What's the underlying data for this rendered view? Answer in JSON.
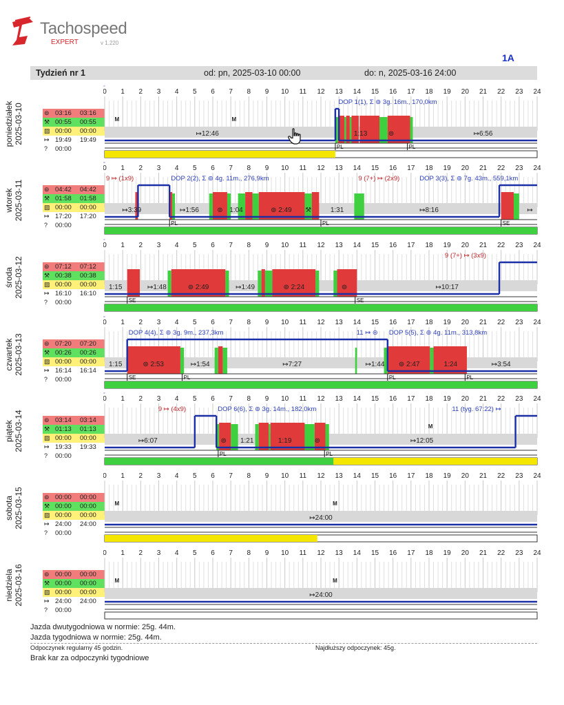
{
  "app": {
    "name": "Tachospeed",
    "edition": "EXPERT",
    "version": "v 1.220"
  },
  "driver_label": "1A",
  "week": {
    "title": "Tydzień nr 1",
    "from": "od: pn, 2025-03-10 00:00",
    "to": "do: n, 2025-03-16 24:00"
  },
  "hour_ticks": [
    "0",
    "1",
    "2",
    "3",
    "4",
    "5",
    "6",
    "7",
    "8",
    "9",
    "10",
    "11",
    "12",
    "13",
    "14",
    "15",
    "16",
    "17",
    "18",
    "19",
    "20",
    "21",
    "22",
    "23",
    "24"
  ],
  "colors": {
    "drive": "#e03a3a",
    "work": "#3fd03f",
    "avail": "#f5e600",
    "rest": "#d8d8d8",
    "line": "#1a2fa6",
    "label_blue": "#2c3fb8",
    "label_red": "#c0272d"
  },
  "days": [
    {
      "name": "poniedziałek",
      "date": "2025-03-10",
      "stats": {
        "drive": [
          "03:16",
          "03:16"
        ],
        "work": [
          "00:55",
          "00:55"
        ],
        "avail": [
          "00:00",
          "00:00"
        ],
        "rest": [
          "19:49",
          "19:49"
        ],
        "unknown": "00:00"
      },
      "drive": [
        [
          12.95,
          13.3
        ],
        [
          13.4,
          13.6
        ],
        [
          13.7,
          14.1
        ],
        [
          14.15,
          15.25
        ],
        [
          15.7,
          16.95
        ]
      ],
      "work": [
        [
          12.8,
          12.95
        ],
        [
          13.3,
          13.4
        ],
        [
          13.6,
          13.7
        ],
        [
          15.25,
          15.7
        ],
        [
          16.95,
          17.1
        ]
      ],
      "line_level": [
        [
          0,
          12.8,
          "low"
        ],
        [
          12.8,
          13.0,
          "high"
        ],
        [
          13.0,
          24,
          "low"
        ]
      ],
      "bottom_bar": {
        "color": "yellow",
        "start": 0,
        "end": 12.8
      },
      "flags": [
        {
          "h": 12.8,
          "t": "PL"
        },
        {
          "h": 16.8,
          "t": "PL"
        }
      ],
      "labels": [
        {
          "h": 5.7,
          "t": "↦12:46",
          "c": "dark"
        },
        {
          "h": 14.2,
          "t": "1:13",
          "c": "dark"
        },
        {
          "h": 21.0,
          "t": "↦6:56",
          "c": "dark"
        },
        {
          "h": 15.9,
          "t": "⊚",
          "c": "dark"
        }
      ],
      "top_labels": [
        {
          "h": 12.9,
          "t": "DOP 1(1), Σ ⊚ 3g. 16m., 170,0km",
          "c": "blue",
          "box": true
        }
      ],
      "markers": [
        {
          "h": 0.4,
          "t": "M"
        },
        {
          "h": 6.9,
          "t": "M"
        }
      ]
    },
    {
      "name": "wtorek",
      "date": "2025-03-11",
      "stats": {
        "drive": [
          "04:42",
          "04:42"
        ],
        "work": [
          "01:58",
          "01:58"
        ],
        "avail": [
          "00:00",
          "00:00"
        ],
        "rest": [
          "17:20",
          "17:20"
        ],
        "unknown": "00:00"
      },
      "drive": [
        [
          1.7,
          1.85
        ],
        [
          3.6,
          3.75
        ],
        [
          6.0,
          6.8
        ],
        [
          7.8,
          8.2
        ],
        [
          8.55,
          11.1
        ],
        [
          11.5,
          11.9
        ],
        [
          22.0,
          22.7
        ]
      ],
      "work": [
        [
          3.75,
          3.9
        ],
        [
          5.8,
          6.0
        ],
        [
          6.8,
          7.0
        ],
        [
          7.4,
          7.8
        ],
        [
          8.2,
          8.55
        ],
        [
          11.1,
          11.5
        ],
        [
          13.85,
          14.4
        ],
        [
          22.7,
          23.0
        ]
      ],
      "line_level": [
        [
          0,
          1.85,
          "low"
        ],
        [
          1.85,
          3.6,
          "high"
        ],
        [
          3.6,
          21.9,
          "low"
        ],
        [
          21.9,
          24,
          "high"
        ]
      ],
      "bottom_bar": {
        "color": "green",
        "start": 0,
        "end": 24
      },
      "flags": [
        {
          "h": 3.6,
          "t": "PL"
        },
        {
          "h": 12.0,
          "t": "PL"
        },
        {
          "h": 22.0,
          "t": "SE"
        }
      ],
      "labels": [
        {
          "h": 1.5,
          "t": "↦3:39",
          "c": "dark"
        },
        {
          "h": 4.7,
          "t": "↦1:56",
          "c": "dark"
        },
        {
          "h": 6.4,
          "t": "⊚",
          "c": "dark"
        },
        {
          "h": 7.3,
          "t": "1:04",
          "c": "dark"
        },
        {
          "h": 9.8,
          "t": "⊚ 2:49",
          "c": "dark"
        },
        {
          "h": 11.3,
          "t": "⚒",
          "c": "dark"
        },
        {
          "h": 12.9,
          "t": "1:31",
          "c": "dark"
        },
        {
          "h": 18.0,
          "t": "↦8:16",
          "c": "dark"
        },
        {
          "h": 23.6,
          "t": "↦",
          "c": "dark"
        }
      ],
      "top_labels": [
        {
          "h": 0.0,
          "t": "9 ↦ (1x9)",
          "c": "mix",
          "box": true
        },
        {
          "h": 3.6,
          "t": "DOP 2(2), Σ ⊚ 4g. 11m., 276,9km",
          "c": "blue",
          "box": true
        },
        {
          "h": 14.0,
          "t": "9 (7+) ↦ (2x9)",
          "c": "mix",
          "box": true
        },
        {
          "h": 17.4,
          "t": "DOP 3(3), Σ ⊚ 7g. 43m., 559,1km",
          "c": "blue",
          "box": true
        }
      ],
      "markers": []
    },
    {
      "name": "środa",
      "date": "2025-03-12",
      "stats": {
        "drive": [
          "07:12",
          "07:12"
        ],
        "work": [
          "00:38",
          "00:38"
        ],
        "avail": [
          "00:00",
          "00:00"
        ],
        "rest": [
          "16:10",
          "16:10"
        ],
        "unknown": "00:00"
      },
      "drive": [
        [
          1.25,
          1.95
        ],
        [
          3.7,
          6.7
        ],
        [
          8.7,
          8.9
        ],
        [
          9.3,
          11.7
        ],
        [
          12.9,
          14.0
        ]
      ],
      "work": [
        [
          1.6,
          1.9
        ],
        [
          3.5,
          3.7
        ],
        [
          6.7,
          6.9
        ],
        [
          8.5,
          8.7
        ],
        [
          8.9,
          9.3
        ],
        [
          11.7,
          11.9
        ],
        [
          12.7,
          12.9
        ]
      ],
      "line_level": [
        [
          0,
          1.25,
          "low"
        ],
        [
          1.25,
          21.9,
          "low"
        ],
        [
          21.9,
          22.0,
          "high"
        ],
        [
          22.0,
          24,
          "high"
        ]
      ],
      "bottom_bar": {
        "color": "green",
        "start": 0,
        "end": 24
      },
      "flags": [
        {
          "h": 1.25,
          "t": "SE"
        },
        {
          "h": 13.9,
          "t": "SE"
        }
      ],
      "labels": [
        {
          "h": 0.6,
          "t": "1:15",
          "c": "dark"
        },
        {
          "h": 2.9,
          "t": "↦1:48",
          "c": "dark"
        },
        {
          "h": 5.2,
          "t": "⊚ 2:49",
          "c": "dark"
        },
        {
          "h": 7.8,
          "t": "↦1:49",
          "c": "dark"
        },
        {
          "h": 10.5,
          "t": "⊚ 2:24",
          "c": "dark"
        },
        {
          "h": 13.3,
          "t": "⊚",
          "c": "dark"
        },
        {
          "h": 19.0,
          "t": "↦10:17",
          "c": "dark"
        }
      ],
      "top_labels": [
        {
          "h": 18.8,
          "t": "9 (7+) ↦ (3x9)",
          "c": "mix",
          "box": true
        }
      ],
      "markers": []
    },
    {
      "name": "czwartek",
      "date": "2025-03-13",
      "stats": {
        "drive": [
          "07:20",
          "07:20"
        ],
        "work": [
          "00:26",
          "00:26"
        ],
        "avail": [
          "00:00",
          "00:00"
        ],
        "rest": [
          "16:14",
          "16:14"
        ],
        "unknown": "00:00"
      },
      "drive": [
        [
          1.25,
          4.2
        ],
        [
          6.3,
          6.55
        ],
        [
          15.7,
          18.05
        ],
        [
          18.25,
          20.1
        ]
      ],
      "work": [
        [
          4.2,
          4.4
        ],
        [
          6.1,
          6.3
        ],
        [
          6.55,
          6.8
        ],
        [
          13.9,
          14.0
        ],
        [
          15.5,
          15.7
        ],
        [
          18.05,
          18.25
        ]
      ],
      "line_level": [
        [
          0,
          1.25,
          "low"
        ],
        [
          1.25,
          15.7,
          "high"
        ],
        [
          15.7,
          24,
          "low"
        ]
      ],
      "bottom_bar": {
        "color": "green",
        "start": 0,
        "end": 24
      },
      "flags": [
        {
          "h": 1.25,
          "t": "SE"
        },
        {
          "h": 4.3,
          "t": "PL"
        },
        {
          "h": 15.7,
          "t": "PL"
        },
        {
          "h": 20.0,
          "t": "PL"
        }
      ],
      "labels": [
        {
          "h": 0.6,
          "t": "1:15",
          "c": "dark"
        },
        {
          "h": 2.7,
          "t": "⊚ 2:53",
          "c": "dark"
        },
        {
          "h": 5.3,
          "t": "↦1:54",
          "c": "dark"
        },
        {
          "h": 10.4,
          "t": "↦7:27",
          "c": "dark"
        },
        {
          "h": 15.0,
          "t": "↦1:44",
          "c": "dark"
        },
        {
          "h": 16.9,
          "t": "⊚ 2:47",
          "c": "dark"
        },
        {
          "h": 19.2,
          "t": "1:24",
          "c": "dark"
        },
        {
          "h": 22.0,
          "t": "↦3:54",
          "c": "dark"
        }
      ],
      "top_labels": [
        {
          "h": 1.25,
          "t": "DOP 4(4), Σ ⊚ 3g. 9m., 237,3km",
          "c": "blue",
          "box": true
        },
        {
          "h": 13.9,
          "t": "11 ↦ ⊜",
          "c": "blue",
          "box": true
        },
        {
          "h": 15.7,
          "t": "DOP 5(5), Σ ⊚ 4g. 11m., 313,8km",
          "c": "blue",
          "box": true
        }
      ],
      "markers": []
    },
    {
      "name": "piątek",
      "date": "2025-03-14",
      "stats": {
        "drive": [
          "03:14",
          "03:14"
        ],
        "work": [
          "01:13",
          "01:13"
        ],
        "avail": [
          "00:00",
          "00:00"
        ],
        "rest": [
          "19:33",
          "19:33"
        ],
        "unknown": "00:00"
      },
      "drive": [
        [
          6.35,
          7.0
        ],
        [
          8.55,
          9.1
        ],
        [
          9.2,
          11.1
        ],
        [
          11.65,
          12.25
        ]
      ],
      "work": [
        [
          6.2,
          6.35
        ],
        [
          7.0,
          7.4
        ],
        [
          8.35,
          8.55
        ],
        [
          9.1,
          9.2
        ],
        [
          11.1,
          11.65
        ],
        [
          12.25,
          12.45
        ]
      ],
      "line_level": [
        [
          0,
          5.0,
          "low"
        ],
        [
          5.0,
          6.2,
          "high"
        ],
        [
          6.2,
          22.8,
          "low"
        ],
        [
          22.8,
          24,
          "high"
        ]
      ],
      "bottom_bar": {
        "color": "split",
        "start": 0,
        "end": 24,
        "split": 12.7
      },
      "flags": [
        {
          "h": 6.3,
          "t": "PL"
        },
        {
          "h": 12.2,
          "t": "PL"
        }
      ],
      "labels": [
        {
          "h": 2.4,
          "t": "↦6:07",
          "c": "dark"
        },
        {
          "h": 6.6,
          "t": "⊚",
          "c": "dark"
        },
        {
          "h": 7.9,
          "t": "1:21",
          "c": "dark"
        },
        {
          "h": 10.0,
          "t": "1:19",
          "c": "dark"
        },
        {
          "h": 11.8,
          "t": "⊚",
          "c": "dark"
        },
        {
          "h": 17.6,
          "t": "↦12:05",
          "c": "dark"
        }
      ],
      "top_labels": [
        {
          "h": 2.9,
          "t": "9 ↦ (4x9)",
          "c": "mix",
          "box": true
        },
        {
          "h": 6.2,
          "t": "DOP 6(6), Σ ⊚ 3g. 14m., 182,0km",
          "c": "blue",
          "box": true
        },
        {
          "h": 19.2,
          "t": "11 (tyg. 67:22) ↦",
          "c": "blue",
          "box": true
        }
      ],
      "markers": [
        {
          "h": 17.8,
          "t": "M"
        }
      ]
    },
    {
      "name": "sobota",
      "date": "2025-03-15",
      "stats": {
        "drive": [
          "00:00",
          "00:00"
        ],
        "work": [
          "00:00",
          "00:00"
        ],
        "avail": [
          "00:00",
          "00:00"
        ],
        "rest": [
          "24:00",
          "24:00"
        ],
        "unknown": "00:00"
      },
      "drive": [],
      "work": [],
      "line_level": [
        [
          0,
          24,
          "low"
        ]
      ],
      "bottom_bar": {
        "color": "yellow",
        "start": 0,
        "end": 11.8
      },
      "flags": [],
      "labels": [
        {
          "h": 12.0,
          "t": "↦24:00",
          "c": "dark"
        }
      ],
      "top_labels": [],
      "markers": [
        {
          "h": 0.4,
          "t": "M"
        },
        {
          "h": 12.5,
          "t": "M"
        }
      ]
    },
    {
      "name": "niedziela",
      "date": "2025-03-16",
      "stats": {
        "drive": [
          "00:00",
          "00:00"
        ],
        "work": [
          "00:00",
          "00:00"
        ],
        "avail": [
          "00:00",
          "00:00"
        ],
        "rest": [
          "24:00",
          "24:00"
        ],
        "unknown": "00:00"
      },
      "drive": [],
      "work": [],
      "line_level": [
        [
          0,
          24,
          "low"
        ]
      ],
      "bottom_bar": {
        "color": "none",
        "start": 0,
        "end": 0
      },
      "flags": [],
      "labels": [
        {
          "h": 12.0,
          "t": "↦24:00",
          "c": "dark"
        }
      ],
      "top_labels": [],
      "markers": [
        {
          "h": 0.4,
          "t": "M"
        },
        {
          "h": 12.5,
          "t": "M"
        }
      ]
    }
  ],
  "footer": {
    "line1": "Jazda dwutygodniowa w normie: 25g. 44m.",
    "line2": "Jazda tygodniowa w normie: 25g. 44m.",
    "rest_regular": "Odpoczynek regularny 45 godzin.",
    "rest_longest": "Najdłuższy odpoczynek: 45g.",
    "penalties": "Brak kar za odpoczynki tygodniowe"
  }
}
